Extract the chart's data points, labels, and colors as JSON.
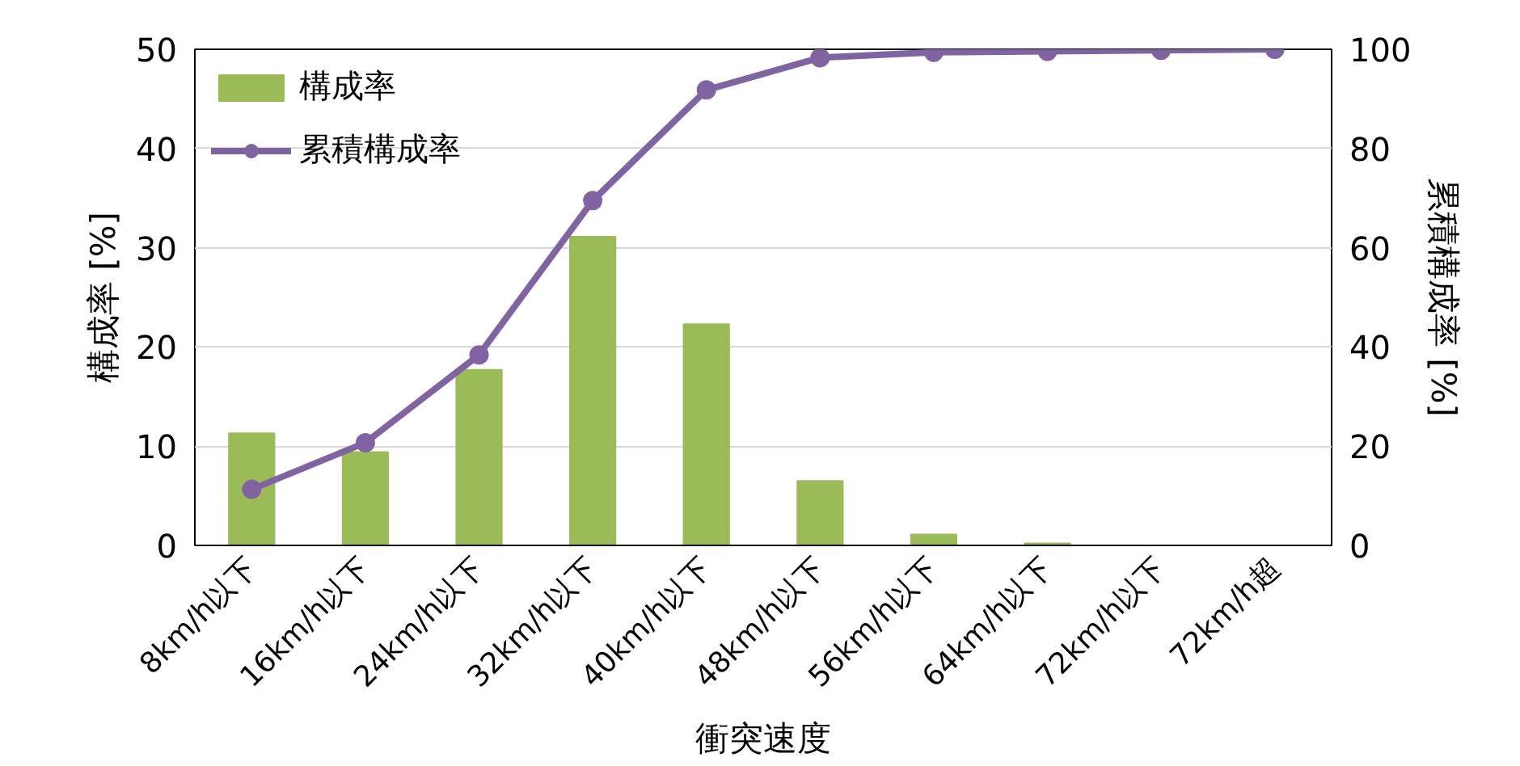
{
  "chart_data": {
    "type": "bar",
    "xlabel": "衝突速度",
    "ylabel": "構成率 [%]",
    "y2label": "累積構成率 [%]",
    "categories": [
      "8km/h以下",
      "16km/h以下",
      "24km/h以下",
      "32km/h以下",
      "40km/h以下",
      "48km/h以下",
      "56km/h以下",
      "64km/h以下",
      "72km/h以下",
      "72km/h超"
    ],
    "series": [
      {
        "name": "構成率",
        "color": "#9bbb59",
        "values": [
          11.3,
          9.4,
          17.7,
          31.1,
          22.3,
          6.5,
          1.1,
          0.2,
          0,
          0
        ]
      },
      {
        "name": "累積構成率",
        "type": "line",
        "axis": "y2",
        "color": "#8064a2",
        "values": [
          11.3,
          20.7,
          38.4,
          69.5,
          91.8,
          98.3,
          99.4,
          99.6,
          99.8,
          100
        ]
      }
    ],
    "ylim": [
      0,
      50
    ],
    "yticks": [
      0,
      10,
      20,
      30,
      40,
      50
    ],
    "y2lim": [
      0,
      100
    ],
    "y2ticks": [
      0,
      20,
      40,
      60,
      80,
      100
    ],
    "grid": "y",
    "legend": "top left",
    "marker": "circle",
    "line_style": "solid"
  }
}
